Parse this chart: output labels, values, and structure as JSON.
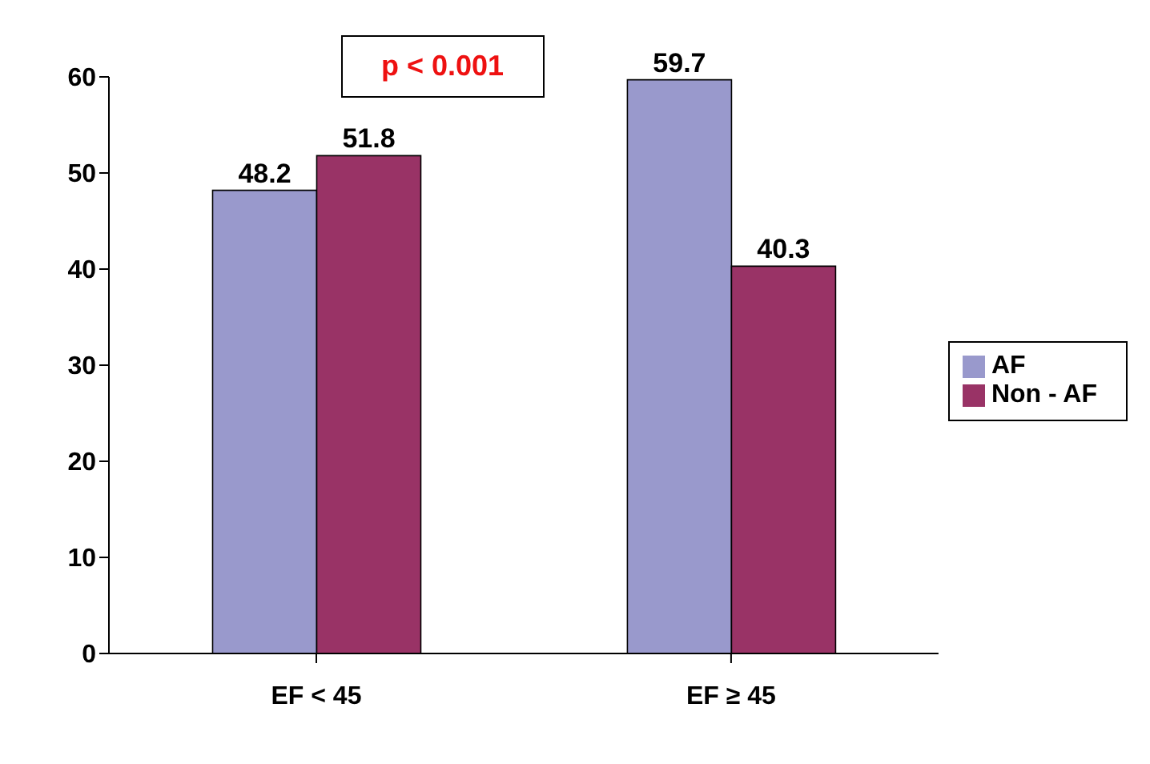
{
  "chart_data": {
    "type": "bar",
    "categories": [
      "EF < 45",
      "EF ≥ 45"
    ],
    "series": [
      {
        "name": "AF",
        "color": "#9999cc",
        "values": [
          48.2,
          59.7
        ]
      },
      {
        "name": "Non - AF",
        "color": "#993366",
        "values": [
          51.8,
          40.3
        ]
      }
    ],
    "ylim": [
      0,
      60
    ],
    "yticks": [
      0,
      10,
      20,
      30,
      40,
      50,
      60
    ],
    "grid": false,
    "legend": "right",
    "data_labels": true,
    "annotations": [
      "p < 0.001"
    ]
  }
}
